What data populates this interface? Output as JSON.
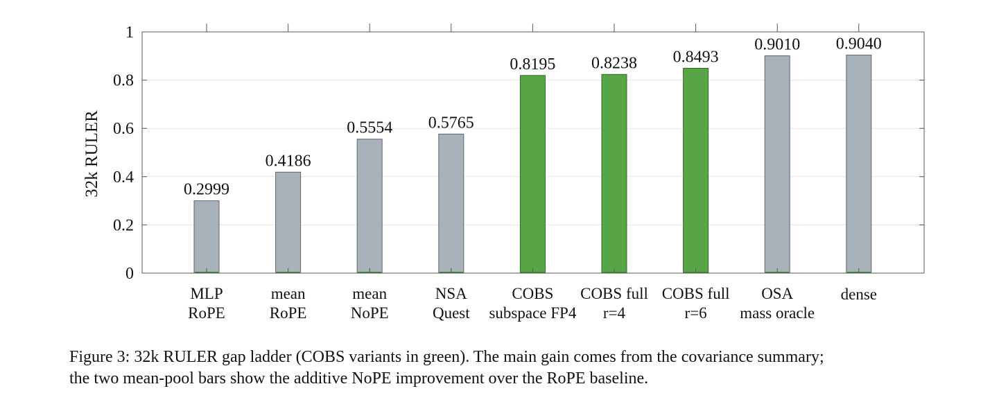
{
  "caption": {
    "line1": "Figure 3: 32k RULER gap ladder (COBS variants in green). The main gain comes from the covariance summary;",
    "line2": "the two mean-pool bars show the additive NoPE improvement over the RoPE baseline."
  },
  "colors": {
    "baseline": "#a9b1bb",
    "cobs": "#58a548",
    "grid": "#e6e6e6",
    "axis": "#555555"
  },
  "chart_data": {
    "type": "bar",
    "ylabel": "32k RULER",
    "ylim": [
      0,
      1
    ],
    "yticks": [
      {
        "value": 0,
        "label": "0"
      },
      {
        "value": 0.2,
        "label": "0.2"
      },
      {
        "value": 0.4,
        "label": "0.4"
      },
      {
        "value": 0.6,
        "label": "0.6"
      },
      {
        "value": 0.8,
        "label": "0.8"
      },
      {
        "value": 1,
        "label": "1"
      }
    ],
    "grid": true,
    "categories": [
      {
        "line1": "MLP",
        "line2": "RoPE"
      },
      {
        "line1": "mean",
        "line2": "RoPE"
      },
      {
        "line1": "mean",
        "line2": "NoPE"
      },
      {
        "line1": "NSA",
        "line2": "Quest"
      },
      {
        "line1": "COBS",
        "line2": "subspace FP4"
      },
      {
        "line1": "COBS full",
        "line2": "r=4"
      },
      {
        "line1": "COBS full",
        "line2": "r=6"
      },
      {
        "line1": "OSA",
        "line2": "mass oracle"
      },
      {
        "line1": "dense",
        "line2": ""
      }
    ],
    "values": [
      0.2999,
      0.4186,
      0.5554,
      0.5765,
      0.8195,
      0.8238,
      0.8493,
      0.901,
      0.904
    ],
    "value_labels": [
      "0.2999",
      "0.4186",
      "0.5554",
      "0.5765",
      "0.8195",
      "0.8238",
      "0.8493",
      "0.9010",
      "0.9040"
    ],
    "groups": [
      "baseline",
      "baseline",
      "baseline",
      "baseline",
      "cobs",
      "cobs",
      "cobs",
      "baseline",
      "baseline"
    ]
  }
}
